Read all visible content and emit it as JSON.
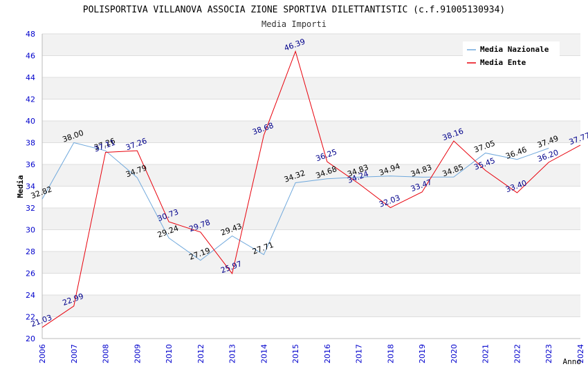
{
  "chart_data": {
    "type": "line",
    "title": "POLISPORTIVA VILLANOVA ASSOCIA ZIONE SPORTIVA DILETTANTISTIC (c.f.91005130934)",
    "subtitle": "Media Importi",
    "xlabel": "Anno",
    "ylabel": "Media",
    "ylim": [
      20,
      48
    ],
    "yticks": [
      20,
      22,
      24,
      26,
      28,
      30,
      32,
      34,
      36,
      38,
      40,
      42,
      44,
      46,
      48
    ],
    "categories": [
      "2006",
      "2007",
      "2008",
      "2009",
      "2010",
      "2012",
      "2013",
      "2014",
      "2015",
      "2016",
      "2017",
      "2018",
      "2019",
      "2020",
      "2021",
      "2022",
      "2023",
      "2024"
    ],
    "grid": true,
    "legend_position": "top-right",
    "series": [
      {
        "name": "Media Nazionale",
        "color": "#6fa8dc",
        "label_color": "#000000",
        "values": [
          32.82,
          38.0,
          37.26,
          34.79,
          29.24,
          27.19,
          29.43,
          27.71,
          34.32,
          34.68,
          34.83,
          34.94,
          34.83,
          34.85,
          37.05,
          36.46,
          37.49,
          null
        ],
        "labels": [
          "32.82",
          "38.00",
          "37.26",
          "34.79",
          "29.24",
          "27.19",
          "29.43",
          "27.71",
          "34.32",
          "34.68",
          "34.83",
          "34.94",
          "34.83",
          "34.85",
          "37.05",
          "36.46",
          "37.49",
          ""
        ]
      },
      {
        "name": "Media Ente",
        "color": "#e8000b",
        "label_color": "#00008b",
        "values": [
          21.03,
          22.99,
          37.11,
          37.26,
          30.73,
          29.78,
          25.97,
          38.68,
          46.39,
          36.25,
          34.24,
          32.03,
          33.47,
          38.16,
          35.45,
          33.4,
          36.2,
          37.77
        ],
        "labels": [
          "21.03",
          "22.99",
          "37.11",
          "37.26",
          "30.73",
          "29.78",
          "25.97",
          "38.68",
          "46.39",
          "36.25",
          "34.24",
          "32.03",
          "33.47",
          "38.16",
          "35.45",
          "33.40",
          "36.20",
          "37.77"
        ]
      }
    ]
  }
}
